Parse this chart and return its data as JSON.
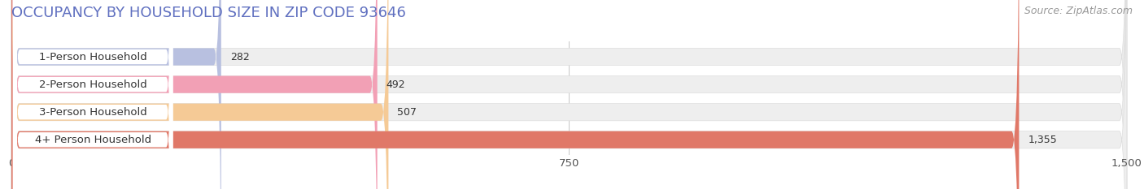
{
  "title": "OCCUPANCY BY HOUSEHOLD SIZE IN ZIP CODE 93646",
  "source": "Source: ZipAtlas.com",
  "categories": [
    "1-Person Household",
    "2-Person Household",
    "3-Person Household",
    "4+ Person Household"
  ],
  "values": [
    282,
    492,
    507,
    1355
  ],
  "bar_colors": [
    "#b8c0e0",
    "#f2a0b5",
    "#f5ca96",
    "#e07868"
  ],
  "xlim_max": 1500,
  "xticks": [
    0,
    750,
    1500
  ],
  "bar_height": 0.62,
  "background_color": "#ffffff",
  "bar_bg_color": "#eeeeee",
  "title_fontsize": 13,
  "label_fontsize": 9.5,
  "value_fontsize": 9,
  "source_fontsize": 9,
  "title_color": "#6070c0",
  "source_color": "#999999",
  "label_color": "#333333",
  "value_color": "#333333"
}
